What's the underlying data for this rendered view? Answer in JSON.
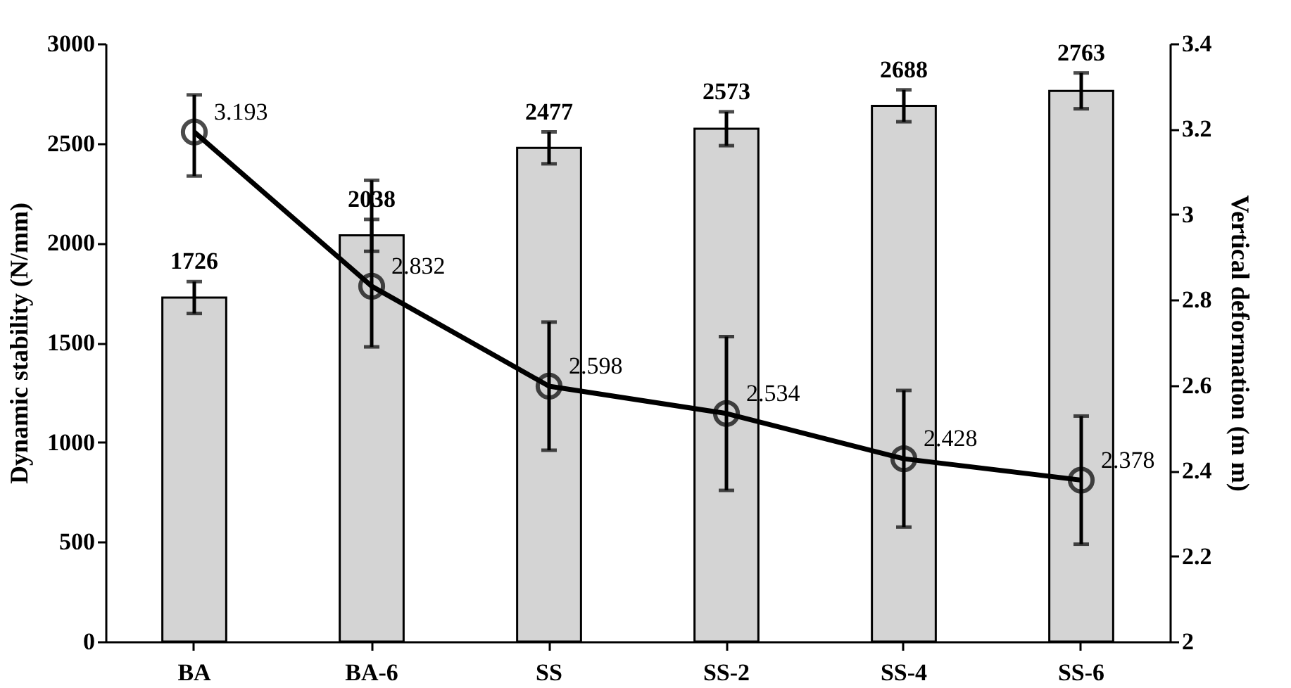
{
  "chart_data": {
    "type": "bar",
    "categories": [
      "BA",
      "BA-6",
      "SS",
      "SS-2",
      "SS-4",
      "SS-6"
    ],
    "series": [
      {
        "color": "#d4d4d4",
        "values": [
          1726,
          2038,
          2477,
          2573,
          2688,
          2763
        ],
        "errors": [
          80,
          80,
          80,
          85,
          80,
          90
        ]
      },
      {
        "type": "line",
        "axis": "y2",
        "color": "#000000",
        "values": [
          3.193,
          2.832,
          2.598,
          2.534,
          2.428,
          2.378
        ],
        "errors": [
          [
            3.09,
            3.28
          ],
          [
            2.69,
            3.08
          ],
          0.15,
          0.18,
          0.16,
          0.15
        ]
      }
    ],
    "ylabel": "Dynamic stability (N/mm)",
    "y2label": "Vertical deformation (m m)",
    "ylim": [
      0,
      3000
    ],
    "yticks": [
      0,
      500,
      1000,
      1500,
      2000,
      2500,
      3000
    ],
    "y2lim": [
      2,
      3.4
    ],
    "y2ticks": [
      2,
      2.2,
      2.4,
      2.6,
      2.8,
      3,
      3.2,
      3.4
    ],
    "data_labels": true,
    "marker": "circle"
  }
}
